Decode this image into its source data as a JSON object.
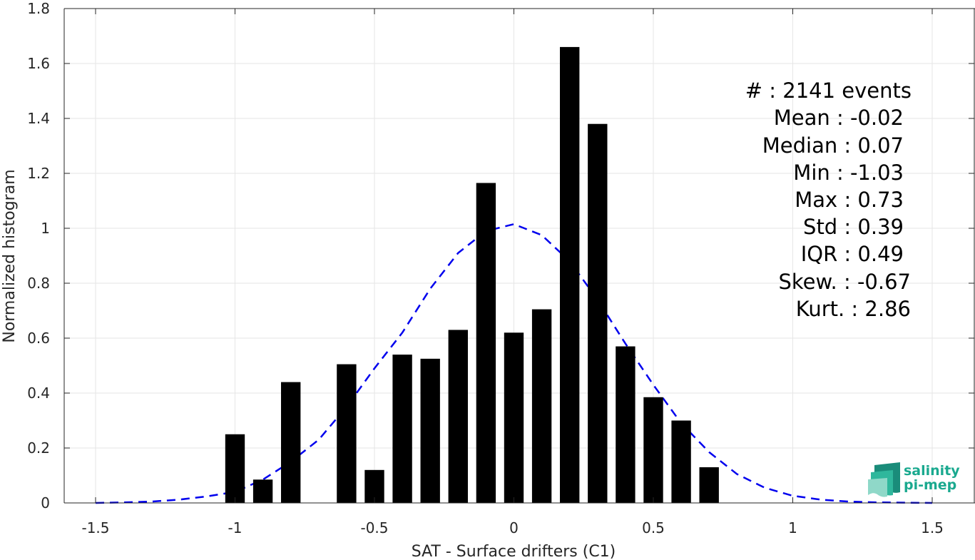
{
  "chart_data": {
    "type": "bar",
    "xlabel": "SAT - Surface drifters (C1)",
    "ylabel": "Normalized histogram",
    "xlim": [
      -1.5,
      1.5
    ],
    "ylim": [
      0,
      1.8
    ],
    "grid": true,
    "x_ticks": [
      -1.5,
      -1,
      -0.5,
      0,
      0.5,
      1,
      1.5
    ],
    "x_tick_labels": [
      "-1.5",
      "-1",
      "-0.5",
      "0",
      "0.5",
      "1",
      "1.5"
    ],
    "y_ticks": [
      0,
      0.2,
      0.4,
      0.6,
      0.8,
      1,
      1.2,
      1.4,
      1.6,
      1.8
    ],
    "y_tick_labels": [
      "0",
      "0.2",
      "0.4",
      "0.6",
      "0.8",
      "1",
      "1.2",
      "1.4",
      "1.6",
      "1.8"
    ],
    "bar_width": 0.07,
    "bar_color": "#000000",
    "bars": [
      {
        "x": -1.0,
        "value": 0.25
      },
      {
        "x": -0.9,
        "value": 0.085
      },
      {
        "x": -0.8,
        "value": 0.44
      },
      {
        "x": -0.6,
        "value": 0.505
      },
      {
        "x": -0.5,
        "value": 0.12
      },
      {
        "x": -0.4,
        "value": 0.54
      },
      {
        "x": -0.3,
        "value": 0.525
      },
      {
        "x": -0.2,
        "value": 0.63
      },
      {
        "x": -0.1,
        "value": 1.165
      },
      {
        "x": 0.0,
        "value": 0.62
      },
      {
        "x": 0.1,
        "value": 0.705
      },
      {
        "x": 0.2,
        "value": 1.66
      },
      {
        "x": 0.3,
        "value": 1.38
      },
      {
        "x": 0.4,
        "value": 0.57
      },
      {
        "x": 0.5,
        "value": 0.385
      },
      {
        "x": 0.6,
        "value": 0.3
      },
      {
        "x": 0.7,
        "value": 0.13
      }
    ],
    "fit_curve": {
      "style": "dashed",
      "color": "#0000ee",
      "x": [
        -1.5,
        -1.4,
        -1.3,
        -1.2,
        -1.1,
        -1.0,
        -0.9,
        -0.8,
        -0.7,
        -0.6,
        -0.5,
        -0.4,
        -0.3,
        -0.2,
        -0.1,
        0.0,
        0.1,
        0.2,
        0.3,
        0.4,
        0.5,
        0.6,
        0.7,
        0.8,
        0.9,
        1.0,
        1.1,
        1.2,
        1.3,
        1.4,
        1.5
      ],
      "y": [
        0.0,
        0.002,
        0.005,
        0.012,
        0.024,
        0.04,
        0.085,
        0.15,
        0.23,
        0.35,
        0.49,
        0.62,
        0.78,
        0.91,
        0.99,
        1.015,
        0.975,
        0.88,
        0.74,
        0.58,
        0.43,
        0.29,
        0.185,
        0.105,
        0.055,
        0.026,
        0.012,
        0.005,
        0.002,
        0.001,
        0.0
      ]
    },
    "annotations": [
      "#  : 2141 events",
      "Mean : -0.02",
      "Median : 0.07",
      "Min : -1.03",
      "Max : 0.73",
      "Std : 0.39",
      "IQR : 0.49",
      "Skew. : -0.67",
      "Kurt. : 2.86"
    ]
  },
  "logo": {
    "line1": "salinity",
    "line2": "pi-mep",
    "color": "#1aa98f"
  }
}
